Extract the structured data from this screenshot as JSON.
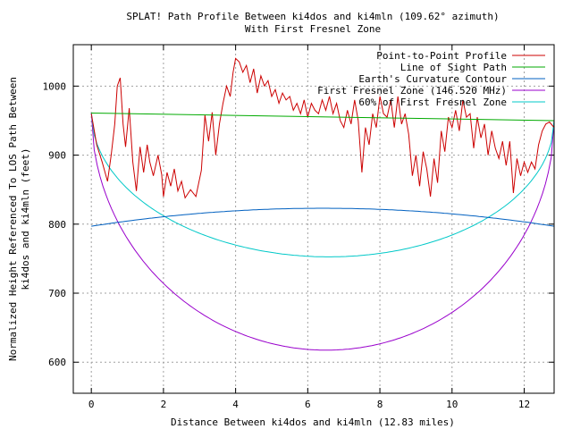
{
  "chart_data": {
    "type": "line",
    "title": "SPLAT! Path Profile Between ki4dos and ki4mln (109.62° azimuth)",
    "subtitle": "With First Fresnel Zone",
    "xlabel": "Distance Between ki4dos and ki4mln (12.83 miles)",
    "ylabel_line1": "Normalized Height Referenced To LOS Path Between",
    "ylabel_line2": "ki4dos and ki4mln (feet)",
    "xlim": [
      -0.5,
      12.83
    ],
    "ylim": [
      555,
      1060
    ],
    "x_ticks": [
      0,
      2,
      4,
      6,
      8,
      10,
      12
    ],
    "y_ticks": [
      600,
      700,
      800,
      900,
      1000
    ],
    "grid": true,
    "legend_position": "top-right",
    "series": [
      {
        "name": "Point-to-Point Profile",
        "color": "#cc0000",
        "x": [
          0,
          0.15,
          0.3,
          0.45,
          0.55,
          0.65,
          0.72,
          0.8,
          0.88,
          0.95,
          1.05,
          1.15,
          1.25,
          1.35,
          1.45,
          1.55,
          1.62,
          1.72,
          1.85,
          1.95,
          2.0,
          2.1,
          2.2,
          2.3,
          2.4,
          2.5,
          2.6,
          2.75,
          2.9,
          3.05,
          3.15,
          3.25,
          3.35,
          3.45,
          3.55,
          3.65,
          3.75,
          3.85,
          3.93,
          4.0,
          4.1,
          4.2,
          4.3,
          4.4,
          4.5,
          4.6,
          4.7,
          4.8,
          4.9,
          5.0,
          5.1,
          5.2,
          5.3,
          5.4,
          5.5,
          5.6,
          5.7,
          5.8,
          5.9,
          6.0,
          6.1,
          6.2,
          6.3,
          6.4,
          6.5,
          6.6,
          6.7,
          6.8,
          6.9,
          7.0,
          7.1,
          7.2,
          7.3,
          7.4,
          7.5,
          7.6,
          7.7,
          7.8,
          7.9,
          8.0,
          8.1,
          8.2,
          8.3,
          8.4,
          8.5,
          8.6,
          8.7,
          8.8,
          8.9,
          9.0,
          9.1,
          9.2,
          9.3,
          9.4,
          9.5,
          9.6,
          9.7,
          9.8,
          9.9,
          10.0,
          10.1,
          10.2,
          10.3,
          10.4,
          10.5,
          10.6,
          10.7,
          10.8,
          10.9,
          11.0,
          11.1,
          11.2,
          11.3,
          11.4,
          11.5,
          11.6,
          11.7,
          11.8,
          11.9,
          12.0,
          12.1,
          12.2,
          12.3,
          12.4,
          12.5,
          12.6,
          12.7,
          12.83
        ],
        "y": [
          960,
          915,
          890,
          862,
          900,
          945,
          1000,
          1012,
          945,
          912,
          968,
          890,
          848,
          912,
          875,
          915,
          890,
          870,
          900,
          872,
          840,
          875,
          855,
          880,
          848,
          862,
          838,
          850,
          840,
          878,
          958,
          920,
          962,
          900,
          945,
          975,
          1000,
          985,
          1020,
          1040,
          1035,
          1020,
          1030,
          1005,
          1025,
          990,
          1015,
          1000,
          1008,
          985,
          995,
          975,
          990,
          980,
          985,
          965,
          975,
          960,
          980,
          955,
          975,
          965,
          960,
          980,
          965,
          985,
          960,
          975,
          950,
          940,
          965,
          945,
          980,
          950,
          875,
          940,
          915,
          960,
          940,
          985,
          960,
          955,
          980,
          940,
          985,
          945,
          960,
          930,
          870,
          900,
          855,
          905,
          880,
          840,
          895,
          860,
          935,
          905,
          955,
          940,
          965,
          935,
          980,
          955,
          960,
          910,
          955,
          925,
          945,
          900,
          935,
          910,
          895,
          920,
          885,
          920,
          845,
          895,
          870,
          890,
          875,
          890,
          880,
          915,
          935,
          945,
          948,
          940
        ]
      },
      {
        "name": "Line of Sight Path",
        "color": "#00aa00",
        "x": [
          0,
          12.83
        ],
        "y": [
          961,
          950
        ]
      },
      {
        "name": "Earth's Curvature Contour",
        "color": "#0060c0",
        "curve": "parabola",
        "x_start": 0,
        "x_end": 12.83,
        "y_start": 797,
        "y_mid": 823,
        "y_end": 797
      },
      {
        "name": "First Fresnel Zone (146.520 MHz)",
        "color": "#9900cc",
        "curve": "fresnel",
        "zone_factor": 1.0
      },
      {
        "name": "60% of First Fresnel Zone",
        "color": "#00c8c8",
        "curve": "fresnel",
        "zone_factor": 0.6
      }
    ],
    "fresnel": {
      "depth_ft": 338
    }
  }
}
